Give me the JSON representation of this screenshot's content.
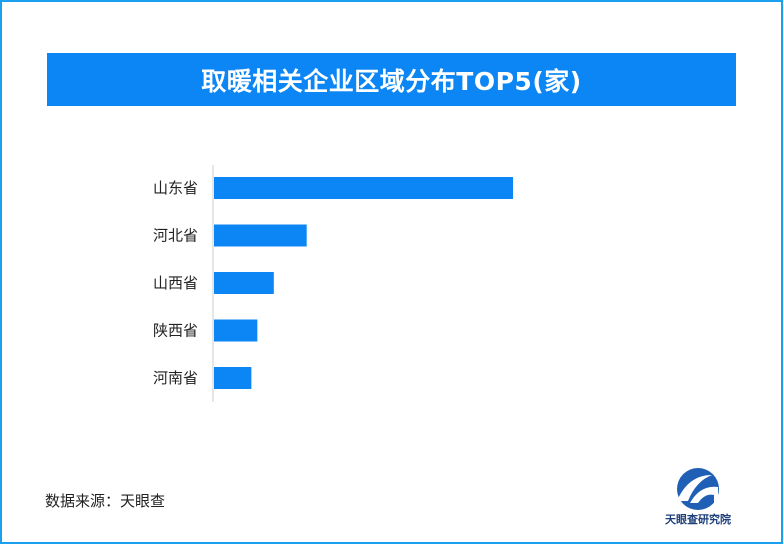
{
  "title": "取暖相关企业区域分布TOP5(家)",
  "source": "数据来源：天眼查",
  "logo_text": "天眼查研究院",
  "colors": {
    "bar": "#0b86f4",
    "banner": "#0b86f4",
    "border": "#1aa0ee",
    "axis": "#cccccc"
  },
  "chart_data": {
    "type": "bar",
    "orientation": "horizontal",
    "categories": [
      "山东省",
      "河北省",
      "山西省",
      "陕西省",
      "河南省"
    ],
    "values": [
      100,
      31,
      20,
      14.5,
      12.5
    ],
    "title": "取暖相关企业区域分布TOP5(家)",
    "xlabel": "",
    "ylabel": "",
    "xlim": [
      0,
      100
    ],
    "grid": false
  }
}
